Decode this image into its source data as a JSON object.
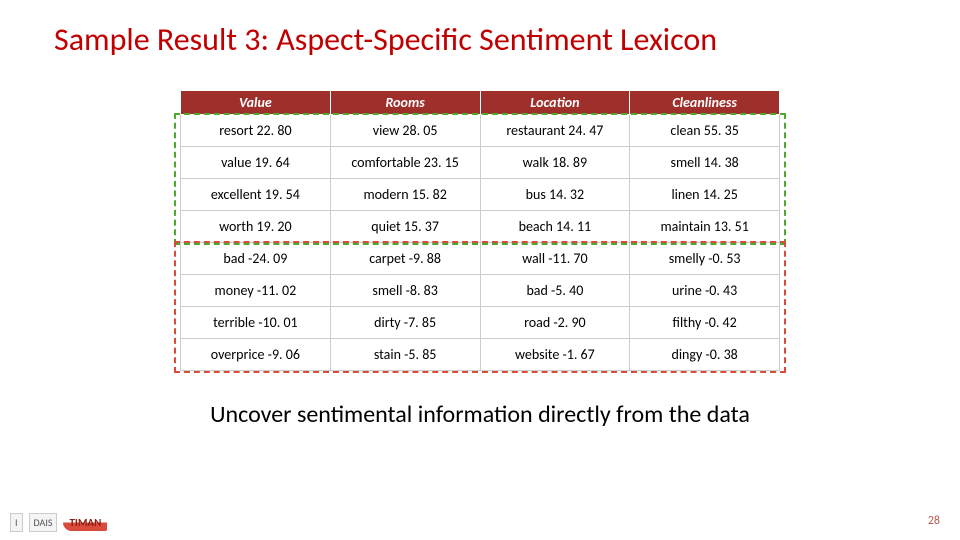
{
  "title": "Sample Result 3: Aspect-Specific Sentiment Lexicon",
  "caption": "Uncover sentimental information directly from the data",
  "page_number": "28",
  "table": {
    "header_bg": "#9f2f2a",
    "header_fg": "#ffffff",
    "columns": [
      "Value",
      "Rooms",
      "Location",
      "Cleanliness"
    ],
    "rows": [
      [
        "resort 22. 80",
        "view 28. 05",
        "restaurant 24. 47",
        "clean 55. 35"
      ],
      [
        "value 19. 64",
        "comfortable 23. 15",
        "walk 18. 89",
        "smell 14. 38"
      ],
      [
        "excellent 19. 54",
        "modern 15. 82",
        "bus 14. 32",
        "linen 14. 25"
      ],
      [
        "worth 19. 20",
        "quiet 15. 37",
        "beach 14. 11",
        "maintain 13. 51"
      ],
      [
        "bad -24. 09",
        "carpet -9. 88",
        "wall -11. 70",
        "smelly -0. 53"
      ],
      [
        "money -11. 02",
        "smell -8. 83",
        "bad -5. 40",
        "urine -0. 43"
      ],
      [
        "terrible -10. 01",
        "dirty -7. 85",
        "road -2. 90",
        "filthy -0. 42"
      ],
      [
        "overprice -9. 06",
        "stain -5. 85",
        "website -1. 67",
        "dingy -0. 38"
      ]
    ]
  },
  "annotations": {
    "green_box_rows": [
      0,
      3
    ],
    "red_box_rows": [
      4,
      7
    ],
    "green_color": "#4ea72e",
    "red_color": "#d94b3a"
  },
  "logos": {
    "illinois": "I",
    "dais": "DAIS",
    "timan": "TIMAN"
  }
}
